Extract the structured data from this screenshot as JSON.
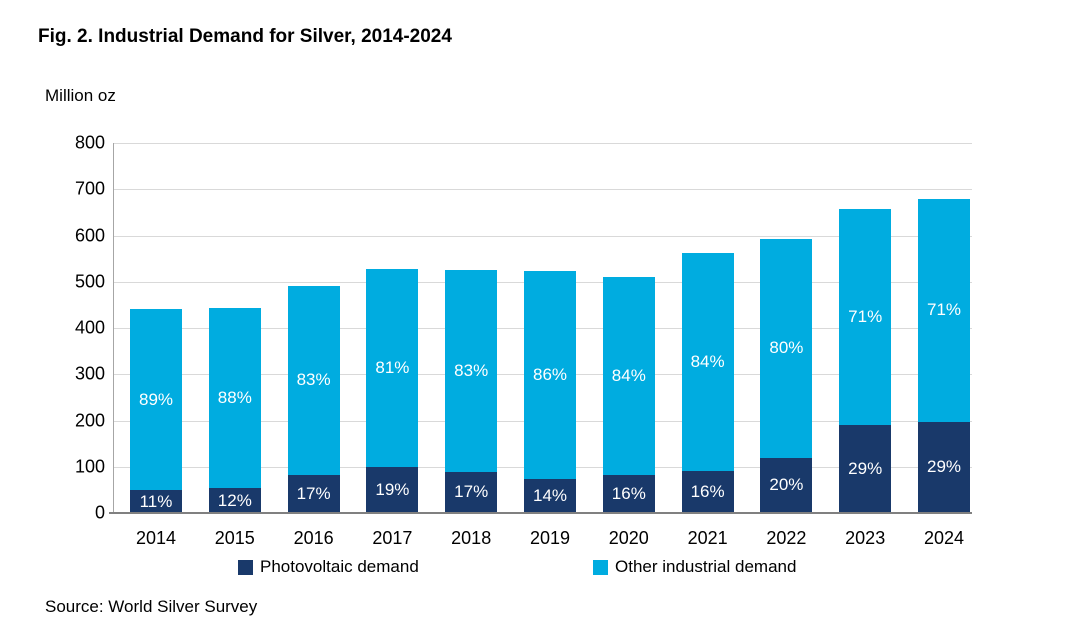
{
  "title": "Fig. 2. Industrial Demand for Silver, 2014-2024",
  "y_axis_unit": "Million oz",
  "source": "Source: World Silver Survey",
  "colors": {
    "photovoltaic": "#19396a",
    "other_industrial": "#00ace0",
    "gridline": "#d9d9d9",
    "y_axis": "#a6a6a6",
    "x_axis": "#808080",
    "label_text": "#ffffff"
  },
  "legend": {
    "items": [
      {
        "label": "Photovoltaic demand",
        "color_key": "photovoltaic"
      },
      {
        "label": "Other industrial demand",
        "color_key": "other_industrial"
      }
    ]
  },
  "chart_data": {
    "type": "bar",
    "stacked": true,
    "title": "Fig. 2. Industrial Demand for Silver, 2014-2024",
    "ylabel": "Million oz",
    "xlabel": "",
    "ylim": [
      0,
      800
    ],
    "ytick_step": 100,
    "yticks": [
      0,
      100,
      200,
      300,
      400,
      500,
      600,
      700,
      800
    ],
    "grid": true,
    "legend_position": "bottom",
    "categories": [
      "2014",
      "2015",
      "2016",
      "2017",
      "2018",
      "2019",
      "2020",
      "2021",
      "2022",
      "2023",
      "2024"
    ],
    "totals": [
      441,
      443,
      490,
      527,
      525,
      524,
      511,
      562,
      593,
      657,
      680
    ],
    "series": [
      {
        "name": "Photovoltaic demand",
        "color_key": "photovoltaic",
        "values": [
          49,
          53,
          83,
          100,
          89,
          73,
          82,
          90,
          119,
          190,
          197
        ],
        "percent_labels": [
          "11%",
          "12%",
          "17%",
          "19%",
          "17%",
          "14%",
          "16%",
          "16%",
          "20%",
          "29%",
          "29%"
        ]
      },
      {
        "name": "Other industrial demand",
        "color_key": "other_industrial",
        "values": [
          392,
          390,
          407,
          427,
          436,
          451,
          429,
          472,
          474,
          467,
          483
        ],
        "percent_labels": [
          "89%",
          "88%",
          "83%",
          "81%",
          "83%",
          "86%",
          "84%",
          "84%",
          "80%",
          "71%",
          "71%"
        ]
      }
    ]
  }
}
